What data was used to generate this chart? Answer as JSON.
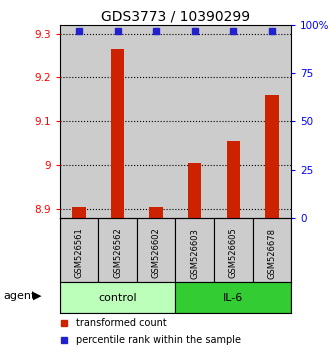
{
  "title": "GDS3773 / 10390299",
  "samples": [
    "GSM526561",
    "GSM526562",
    "GSM526602",
    "GSM526603",
    "GSM526605",
    "GSM526678"
  ],
  "red_values": [
    8.905,
    9.265,
    8.905,
    9.005,
    9.055,
    9.16
  ],
  "blue_values": [
    97,
    97,
    97,
    97,
    97,
    97
  ],
  "ylim_left": [
    8.88,
    9.32
  ],
  "ylim_right": [
    0,
    100
  ],
  "yticks_left": [
    8.9,
    9.0,
    9.1,
    9.2,
    9.3
  ],
  "ytick_labels_left": [
    "8.9",
    "9",
    "9.1",
    "9.2",
    "9.3"
  ],
  "yticks_right": [
    0,
    25,
    50,
    75,
    100
  ],
  "ytick_labels_right": [
    "0",
    "25",
    "50",
    "75",
    "100%"
  ],
  "groups": [
    {
      "label": "control",
      "indices": [
        0,
        1,
        2
      ],
      "color": "#bbffbb"
    },
    {
      "label": "IL-6",
      "indices": [
        3,
        4,
        5
      ],
      "color": "#33cc33"
    }
  ],
  "agent_label": "agent",
  "legend_red": "transformed count",
  "legend_blue": "percentile rank within the sample",
  "bar_color": "#cc2200",
  "dot_color": "#2222cc",
  "sample_bg_color": "#cccccc",
  "title_fontsize": 10,
  "bar_width": 0.35
}
